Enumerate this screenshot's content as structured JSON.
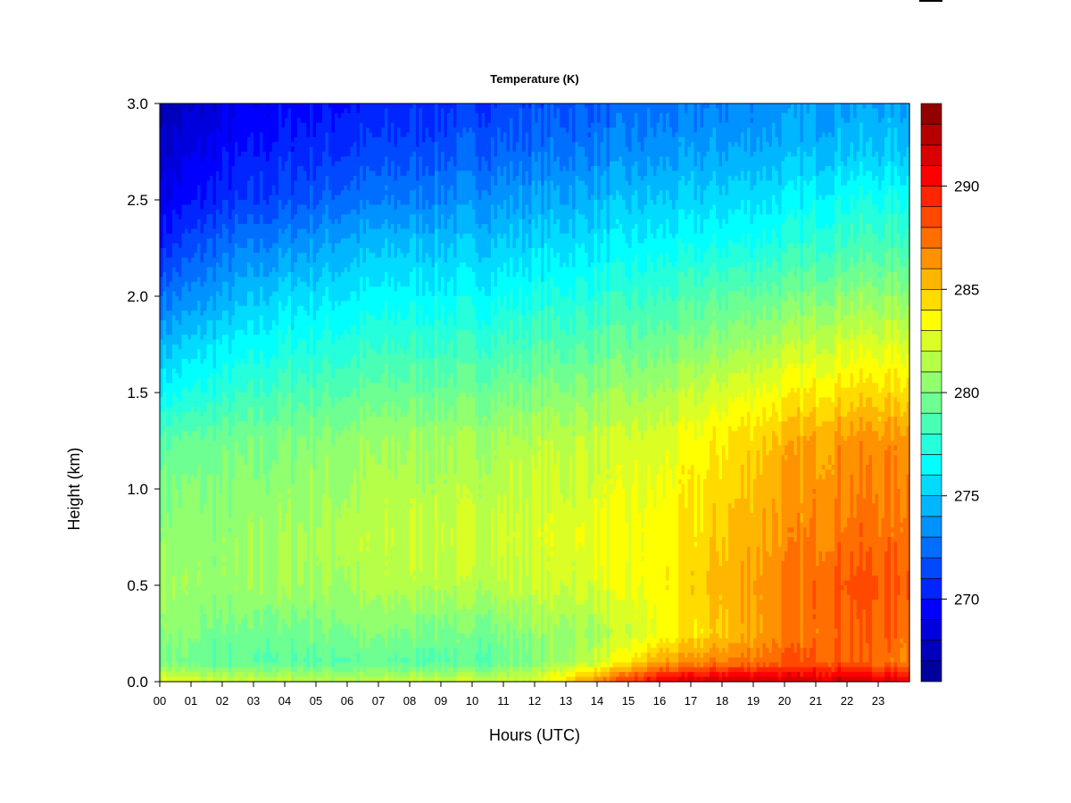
{
  "chart_data": {
    "type": "heatmap",
    "title": "Temperature (K)",
    "xlabel": "Hours (UTC)",
    "ylabel": "Height (km)",
    "x_unit": "hours UTC",
    "y_unit": "km",
    "xlim": [
      0,
      24
    ],
    "ylim": [
      0,
      3.0
    ],
    "x_ticks": [
      0,
      1,
      2,
      3,
      4,
      5,
      6,
      7,
      8,
      9,
      10,
      11,
      12,
      13,
      14,
      15,
      16,
      17,
      18,
      19,
      20,
      21,
      22,
      23
    ],
    "x_tick_labels": [
      "00",
      "01",
      "02",
      "03",
      "04",
      "05",
      "06",
      "07",
      "08",
      "09",
      "10",
      "11",
      "12",
      "13",
      "14",
      "15",
      "16",
      "17",
      "18",
      "19",
      "20",
      "21",
      "22",
      "23"
    ],
    "y_ticks": [
      0.0,
      0.5,
      1.0,
      1.5,
      2.0,
      2.5,
      3.0
    ],
    "y_tick_labels": [
      "0.0",
      "0.5",
      "1.0",
      "1.5",
      "2.0",
      "2.5",
      "3.0"
    ],
    "colorbar": {
      "label": "Temperature (K)",
      "range": [
        266,
        294
      ],
      "levels": 28,
      "ticks": [
        270,
        275,
        280,
        285,
        290
      ],
      "tick_labels": [
        "270",
        "275",
        "280",
        "285",
        "290"
      ],
      "colormap": [
        "#00008b",
        "#0000ff",
        "#0080ff",
        "#00ffff",
        "#80ff80",
        "#ffff00",
        "#ff8000",
        "#ff0000",
        "#800000"
      ]
    },
    "grid": false,
    "heights_km": [
      0.0,
      0.1,
      0.25,
      0.5,
      0.75,
      1.0,
      1.25,
      1.5,
      1.75,
      2.0,
      2.25,
      2.5,
      2.75,
      3.0
    ],
    "hours": [
      0,
      2,
      4,
      6,
      8,
      10,
      12,
      14,
      16,
      18,
      20,
      22,
      24
    ],
    "temperature_K": [
      [
        283,
        282,
        282,
        281.5,
        282,
        282,
        282.5,
        287,
        291,
        292,
        292,
        292,
        291
      ],
      [
        280,
        279,
        279,
        279,
        279,
        279,
        280,
        282,
        286,
        287,
        288,
        288,
        287
      ],
      [
        280.5,
        279.5,
        279.5,
        280,
        280,
        279.5,
        280.5,
        281,
        283,
        285,
        287,
        288,
        287.5
      ],
      [
        281,
        280.5,
        281,
        281,
        281.5,
        281.5,
        282,
        282.5,
        283.5,
        285.5,
        287,
        288.5,
        288
      ],
      [
        280.5,
        280.5,
        281,
        281.5,
        282,
        282,
        282.5,
        283,
        283.5,
        285,
        286.5,
        287.5,
        287.5
      ],
      [
        280,
        280,
        280.5,
        281,
        281.5,
        281.5,
        282,
        282.5,
        283,
        284.5,
        286,
        287,
        287
      ],
      [
        279,
        279.5,
        280,
        280.5,
        281,
        281,
        281.5,
        282,
        282.5,
        284,
        285.5,
        286.5,
        286.5
      ],
      [
        276.5,
        277.5,
        278.5,
        279,
        279.5,
        279.5,
        280,
        280.5,
        281,
        282.5,
        283.5,
        284.5,
        284.5
      ],
      [
        274.5,
        276,
        277,
        277.5,
        278,
        278,
        278.5,
        279,
        279.5,
        280.5,
        281.5,
        282.5,
        282.5
      ],
      [
        272.5,
        274,
        275.5,
        276,
        276.5,
        276.5,
        277,
        277.5,
        278,
        279,
        279.5,
        280.5,
        280.5
      ],
      [
        270.5,
        272.5,
        273.5,
        274.5,
        275,
        275,
        275.5,
        276,
        276.5,
        277,
        277.5,
        278.5,
        278.5
      ],
      [
        269,
        270.5,
        271.5,
        272.5,
        273,
        273.5,
        274,
        274.5,
        275,
        275.5,
        276,
        277,
        277
      ],
      [
        268,
        269.5,
        270.5,
        271,
        271.5,
        272,
        272.5,
        273,
        273.5,
        274,
        274.5,
        275,
        275
      ],
      [
        267,
        268.5,
        269.5,
        270,
        270.5,
        271,
        271.5,
        272,
        272.5,
        273,
        273.5,
        274,
        274
      ]
    ]
  }
}
